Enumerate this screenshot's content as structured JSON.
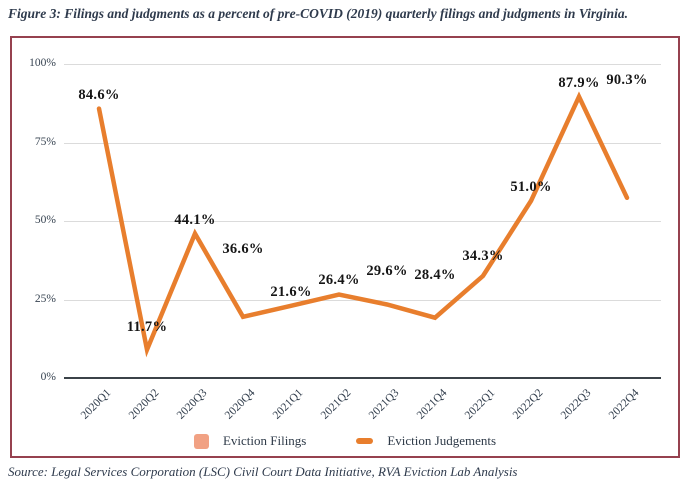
{
  "figure_title": "Figure 3: Filings and judgments as a percent of pre-COVID (2019) quarterly filings and judgments in Virginia.",
  "source_note": "Source: Legal Services Corporation (LSC) Civil Court Data Initiative, RVA Eviction Lab Analysis",
  "colors": {
    "bar": "#F1A183",
    "line": "#E87E2D",
    "panel_border": "#96414F",
    "grid": "#dbdbdb",
    "axis": "#3b4248",
    "heading_text": "#2e3a4c",
    "tick_text": "#384452",
    "value_label_text": "#161616"
  },
  "legend": {
    "items": [
      {
        "label": "Eviction Filings",
        "swatch": "bar"
      },
      {
        "label": "Eviction Judgements",
        "swatch": "line"
      }
    ]
  },
  "chart_data": {
    "type": "bar",
    "title": "",
    "xlabel": "",
    "ylabel": "",
    "ylim": [
      0,
      100
    ],
    "grid": true,
    "legend_position": "bottom",
    "categories": [
      "2020Q1",
      "2020Q2",
      "2020Q3",
      "2020Q4",
      "2021Q1",
      "2021Q2",
      "2021Q3",
      "2021Q4",
      "2022Q1",
      "2022Q2",
      "2022Q3",
      "2022Q4"
    ],
    "yticks": [
      {
        "label": "100%",
        "value": 100
      },
      {
        "label": "75%",
        "value": 75
      },
      {
        "label": "50%",
        "value": 50
      },
      {
        "label": "25%",
        "value": 25
      },
      {
        "label": "0%",
        "value": 0
      }
    ],
    "series": [
      {
        "name": "Eviction Filings",
        "type": "bar",
        "values": [
          84.6,
          11.7,
          44.1,
          36.6,
          21.6,
          26.4,
          29.6,
          28.4,
          34.3,
          51.0,
          87.9,
          90.3
        ],
        "value_labels": [
          "84.6%",
          "11.7%",
          "44.1%",
          "36.6%",
          "21.6%",
          "26.4%",
          "29.6%",
          "28.4%",
          "34.3%",
          "51.0%",
          "87.9%",
          "90.3%"
        ]
      },
      {
        "name": "Eviction Judgements",
        "type": "line",
        "values_estimated": [
          85.8,
          9.0,
          46.0,
          19.5,
          23.0,
          26.6,
          23.4,
          19.2,
          32.5,
          56.4,
          89.6,
          57.4
        ]
      }
    ]
  }
}
